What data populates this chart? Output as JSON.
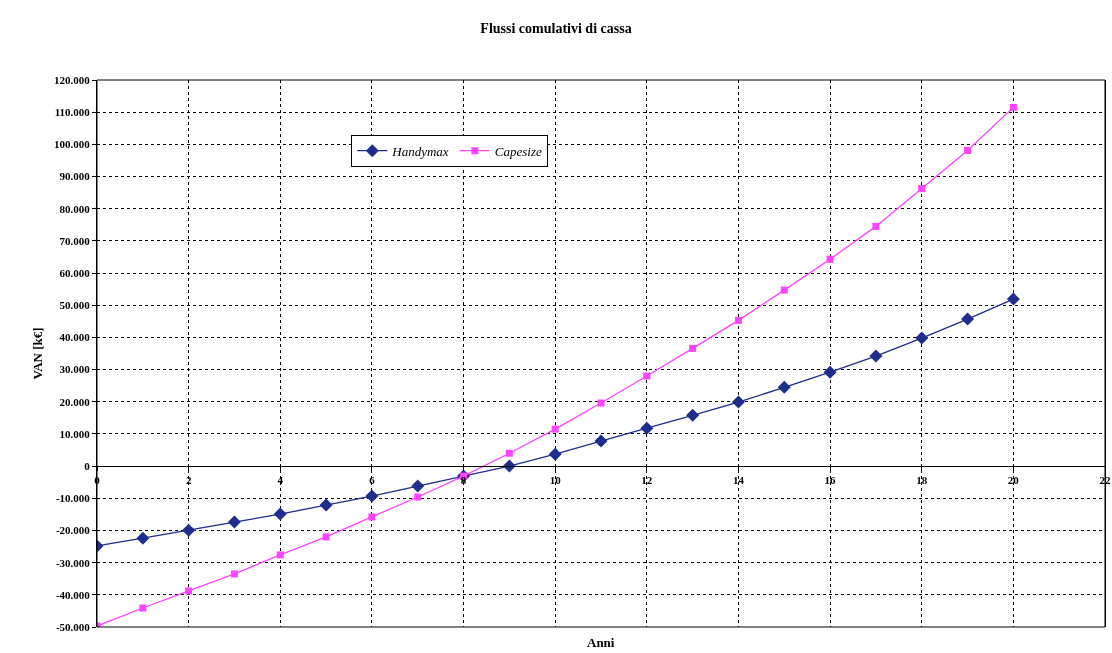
{
  "chart_data": {
    "type": "line",
    "title": "Flussi comulativi di cassa",
    "xlabel": "Anni",
    "ylabel": "VAN [k€]",
    "x": [
      0,
      1,
      2,
      3,
      4,
      5,
      6,
      7,
      8,
      9,
      10,
      11,
      12,
      13,
      14,
      15,
      16,
      17,
      18,
      19,
      20
    ],
    "series": [
      {
        "name": "Handymax",
        "color": "#1f2d8c",
        "marker": "diamond",
        "values": [
          -24800,
          -22400,
          -19900,
          -17400,
          -14900,
          -12100,
          -9300,
          -6200,
          -3100,
          0,
          3700,
          7800,
          11800,
          15800,
          19900,
          24500,
          29200,
          34200,
          39800,
          45700,
          51900
        ]
      },
      {
        "name": "Capesize",
        "color": "#ff44ff",
        "marker": "square",
        "values": [
          -49700,
          -44100,
          -38800,
          -33500,
          -27600,
          -22000,
          -15800,
          -9600,
          -3100,
          4000,
          11500,
          19600,
          28000,
          36600,
          45300,
          54700,
          64300,
          74500,
          86300,
          98100,
          111500
        ]
      }
    ],
    "xlim": [
      0,
      22
    ],
    "xticks": [
      0,
      2,
      4,
      6,
      8,
      10,
      12,
      14,
      16,
      18,
      20,
      22
    ],
    "ylim": [
      -50000,
      120000
    ],
    "yticks": [
      {
        "value": -50000,
        "label": "-50.000"
      },
      {
        "value": -40000,
        "label": "-40.000"
      },
      {
        "value": -30000,
        "label": "-30.000"
      },
      {
        "value": -20000,
        "label": "-20.000"
      },
      {
        "value": -10000,
        "label": "-10.000"
      },
      {
        "value": 0,
        "label": "0"
      },
      {
        "value": 10000,
        "label": "10.000"
      },
      {
        "value": 20000,
        "label": "20.000"
      },
      {
        "value": 30000,
        "label": "30.000"
      },
      {
        "value": 40000,
        "label": "40.000"
      },
      {
        "value": 50000,
        "label": "50.000"
      },
      {
        "value": 60000,
        "label": "60.000"
      },
      {
        "value": 70000,
        "label": "70.000"
      },
      {
        "value": 80000,
        "label": "80.000"
      },
      {
        "value": 90000,
        "label": "90.000"
      },
      {
        "value": 100000,
        "label": "100.000"
      },
      {
        "value": 110000,
        "label": "110.000"
      },
      {
        "value": 120000,
        "label": "120.000"
      }
    ],
    "grid": true,
    "legend": "top",
    "line_style": "solid"
  }
}
